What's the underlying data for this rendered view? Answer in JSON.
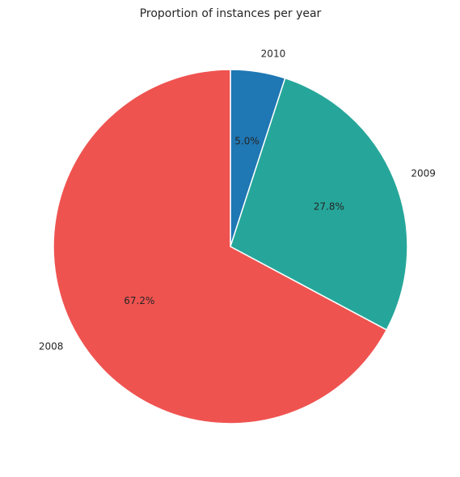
{
  "chart_data": {
    "type": "pie",
    "title": "Proportion of instances per year",
    "labels": [
      "2010",
      "2009",
      "2008"
    ],
    "values": [
      5.0,
      27.8,
      67.2
    ],
    "percent_labels": [
      "5.0%",
      "27.8%",
      "67.2%"
    ],
    "colors": [
      "#1f77b4",
      "#26a69a",
      "#ef5350"
    ],
    "start_angle": 90,
    "direction": "clockwise"
  }
}
